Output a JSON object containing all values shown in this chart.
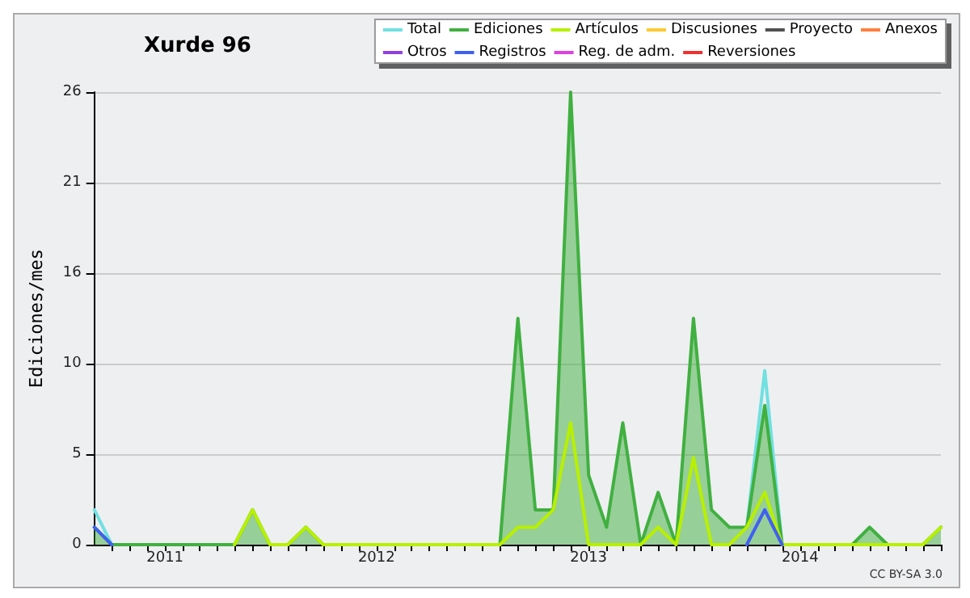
{
  "chart_data": {
    "type": "line",
    "title": "Xurde 96",
    "ylabel": "Ediciones/mes",
    "x": [
      "2010-09",
      "2010-10",
      "2010-11",
      "2010-12",
      "2011-01",
      "2011-02",
      "2011-03",
      "2011-04",
      "2011-05",
      "2011-06",
      "2011-07",
      "2011-08",
      "2011-09",
      "2011-10",
      "2011-11",
      "2011-12",
      "2012-01",
      "2012-02",
      "2012-03",
      "2012-04",
      "2012-05",
      "2012-06",
      "2012-07",
      "2012-08",
      "2012-09",
      "2012-10",
      "2012-11",
      "2012-12",
      "2013-01",
      "2013-02",
      "2013-03",
      "2013-04",
      "2013-05",
      "2013-06",
      "2013-07",
      "2013-08",
      "2013-09",
      "2013-10",
      "2013-11",
      "2013-12",
      "2014-01",
      "2014-02",
      "2014-03",
      "2014-04",
      "2014-05",
      "2014-06",
      "2014-07",
      "2014-08",
      "2014-09"
    ],
    "series": [
      {
        "name": "Total",
        "color": "#70e0e0",
        "values": [
          2,
          0,
          null,
          null,
          null,
          null,
          null,
          null,
          null,
          null,
          null,
          null,
          null,
          null,
          null,
          null,
          null,
          null,
          null,
          null,
          null,
          null,
          null,
          null,
          null,
          null,
          null,
          null,
          null,
          null,
          null,
          null,
          null,
          null,
          null,
          null,
          null,
          1,
          10,
          0,
          null,
          null,
          null,
          null,
          null,
          null,
          null,
          null,
          null
        ]
      },
      {
        "name": "Ediciones",
        "type": "area",
        "color": "#40b040",
        "values": [
          1,
          0,
          0,
          0,
          0,
          0,
          0,
          0,
          0,
          2,
          0,
          0,
          1,
          0,
          0,
          0,
          0,
          0,
          0,
          0,
          0,
          0,
          0,
          0,
          13,
          2,
          2,
          26,
          4,
          1,
          7,
          0,
          3,
          0,
          13,
          2,
          1,
          1,
          8,
          0,
          0,
          0,
          0,
          0,
          1,
          0,
          0,
          0,
          1
        ]
      },
      {
        "name": "Artículos",
        "color": "#b8f000",
        "values": [
          null,
          null,
          null,
          null,
          null,
          null,
          null,
          null,
          0,
          2,
          0,
          0,
          1,
          0,
          0,
          0,
          0,
          0,
          0,
          0,
          0,
          0,
          0,
          0,
          1,
          1,
          2,
          7,
          0,
          0,
          0,
          0,
          1,
          0,
          5,
          0,
          0,
          1,
          3,
          0,
          0,
          0,
          0,
          0,
          0,
          0,
          0,
          0,
          1
        ]
      },
      {
        "name": "Discusiones",
        "color": "#ffc830",
        "values": [
          null,
          null,
          null,
          null,
          null,
          null,
          null,
          null,
          null,
          null,
          null,
          null,
          null,
          null,
          null,
          null,
          null,
          null,
          null,
          null,
          null,
          null,
          null,
          null,
          null,
          null,
          null,
          null,
          null,
          null,
          null,
          null,
          null,
          null,
          null,
          null,
          null,
          null,
          null,
          null,
          null,
          null,
          null,
          null,
          null,
          null,
          null,
          null,
          null
        ]
      },
      {
        "name": "Proyecto",
        "color": "#505050",
        "values": [
          null,
          null,
          null,
          null,
          null,
          null,
          null,
          null,
          null,
          null,
          null,
          null,
          null,
          null,
          null,
          null,
          null,
          null,
          null,
          null,
          null,
          null,
          null,
          null,
          null,
          null,
          null,
          null,
          null,
          null,
          null,
          null,
          null,
          null,
          null,
          null,
          null,
          null,
          null,
          null,
          null,
          null,
          null,
          null,
          null,
          null,
          null,
          null,
          null
        ]
      },
      {
        "name": "Anexos",
        "color": "#ff8040",
        "values": [
          null,
          null,
          null,
          null,
          null,
          null,
          null,
          null,
          null,
          null,
          null,
          null,
          null,
          null,
          null,
          null,
          null,
          null,
          null,
          null,
          null,
          null,
          null,
          null,
          null,
          null,
          null,
          null,
          null,
          null,
          null,
          null,
          null,
          null,
          null,
          null,
          null,
          null,
          null,
          null,
          null,
          null,
          null,
          null,
          null,
          null,
          null,
          null,
          null
        ]
      },
      {
        "name": "Otros",
        "color": "#9040e0",
        "values": [
          null,
          null,
          null,
          null,
          null,
          null,
          null,
          null,
          null,
          null,
          null,
          null,
          null,
          null,
          null,
          null,
          null,
          null,
          null,
          null,
          null,
          null,
          null,
          null,
          null,
          null,
          null,
          null,
          null,
          null,
          null,
          null,
          null,
          null,
          null,
          null,
          null,
          null,
          null,
          null,
          null,
          null,
          null,
          null,
          null,
          null,
          null,
          null,
          null
        ]
      },
      {
        "name": "Registros",
        "color": "#4060f0",
        "values": [
          1,
          0,
          null,
          null,
          null,
          null,
          null,
          null,
          null,
          null,
          null,
          null,
          null,
          null,
          null,
          null,
          null,
          null,
          null,
          null,
          null,
          null,
          null,
          null,
          null,
          null,
          null,
          null,
          null,
          null,
          null,
          null,
          null,
          null,
          null,
          null,
          null,
          0,
          2,
          0,
          null,
          null,
          null,
          null,
          null,
          null,
          null,
          null,
          null
        ]
      },
      {
        "name": "Reg. de adm.",
        "color": "#e040e0",
        "values": [
          null,
          null,
          null,
          null,
          null,
          null,
          null,
          null,
          null,
          null,
          null,
          null,
          null,
          null,
          null,
          null,
          null,
          null,
          null,
          null,
          null,
          null,
          null,
          null,
          null,
          null,
          null,
          null,
          null,
          null,
          null,
          null,
          null,
          null,
          null,
          null,
          null,
          null,
          null,
          null,
          null,
          null,
          null,
          null,
          null,
          null,
          null,
          null,
          null
        ]
      },
      {
        "name": "Reversiones",
        "color": "#f03030",
        "values": [
          null,
          null,
          null,
          null,
          null,
          null,
          null,
          null,
          null,
          null,
          null,
          null,
          null,
          null,
          null,
          null,
          null,
          null,
          null,
          null,
          null,
          null,
          null,
          null,
          null,
          null,
          null,
          null,
          null,
          null,
          null,
          null,
          null,
          null,
          null,
          null,
          null,
          null,
          null,
          null,
          null,
          null,
          null,
          null,
          null,
          null,
          null,
          null,
          null
        ]
      }
    ],
    "xlim": [
      "2010-09",
      "2014-09"
    ],
    "xticks": [
      {
        "value": "2010-10",
        "label": null
      },
      {
        "value": "2010-11",
        "label": null
      },
      {
        "value": "2010-12",
        "label": null
      },
      {
        "value": "2011-01",
        "label": "2011"
      },
      {
        "value": "2011-02",
        "label": null
      },
      {
        "value": "2011-03",
        "label": null
      },
      {
        "value": "2011-04",
        "label": null
      },
      {
        "value": "2011-05",
        "label": null
      },
      {
        "value": "2011-06",
        "label": null
      },
      {
        "value": "2011-07",
        "label": null
      },
      {
        "value": "2011-08",
        "label": null
      },
      {
        "value": "2011-09",
        "label": null
      },
      {
        "value": "2011-10",
        "label": null
      },
      {
        "value": "2011-11",
        "label": null
      },
      {
        "value": "2011-12",
        "label": null
      },
      {
        "value": "2012-01",
        "label": "2012"
      },
      {
        "value": "2012-02",
        "label": null
      },
      {
        "value": "2012-03",
        "label": null
      },
      {
        "value": "2012-04",
        "label": null
      },
      {
        "value": "2012-05",
        "label": null
      },
      {
        "value": "2012-06",
        "label": null
      },
      {
        "value": "2012-07",
        "label": null
      },
      {
        "value": "2012-08",
        "label": null
      },
      {
        "value": "2012-09",
        "label": null
      },
      {
        "value": "2012-10",
        "label": null
      },
      {
        "value": "2012-11",
        "label": null
      },
      {
        "value": "2012-12",
        "label": null
      },
      {
        "value": "2013-01",
        "label": "2013"
      },
      {
        "value": "2013-02",
        "label": null
      },
      {
        "value": "2013-03",
        "label": null
      },
      {
        "value": "2013-04",
        "label": null
      },
      {
        "value": "2013-05",
        "label": null
      },
      {
        "value": "2013-06",
        "label": null
      },
      {
        "value": "2013-07",
        "label": null
      },
      {
        "value": "2013-08",
        "label": null
      },
      {
        "value": "2013-09",
        "label": null
      },
      {
        "value": "2013-10",
        "label": null
      },
      {
        "value": "2013-11",
        "label": null
      },
      {
        "value": "2013-12",
        "label": null
      },
      {
        "value": "2014-01",
        "label": "2014"
      },
      {
        "value": "2014-02",
        "label": null
      },
      {
        "value": "2014-03",
        "label": null
      },
      {
        "value": "2014-04",
        "label": null
      },
      {
        "value": "2014-05",
        "label": null
      },
      {
        "value": "2014-06",
        "label": null
      },
      {
        "value": "2014-07",
        "label": null
      },
      {
        "value": "2014-08",
        "label": null
      },
      {
        "value": "2014-09",
        "label": null
      }
    ],
    "ylim": [
      0,
      26
    ],
    "yticks": [
      0,
      {
        "value": 5.2,
        "label": "5"
      },
      {
        "value": 10.4,
        "label": "10"
      },
      {
        "value": 15.6,
        "label": "16"
      },
      {
        "value": 20.8,
        "label": "21"
      },
      26
    ],
    "grid": "y",
    "legend": "top right",
    "marker": "none",
    "line_style": "solid",
    "annotations": [
      "CC BY-SA 3.0"
    ]
  }
}
